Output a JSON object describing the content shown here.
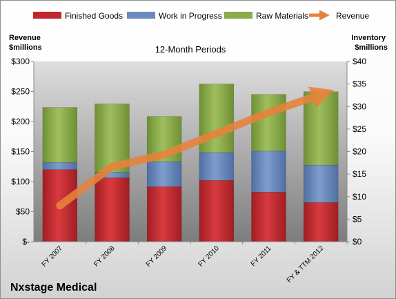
{
  "chart_data": {
    "type": "bar",
    "stacked": true,
    "title": "12-Month Periods",
    "company": "Nxstage Medical",
    "ylabel_left": "Revenue\n$millions",
    "ylabel_right": "Inventory\n$millions",
    "categories": [
      "FY 2007",
      "FY 2008",
      "FY 2009",
      "FY 2010",
      "FY 2011",
      "FY & TTM 2012"
    ],
    "left_axis": {
      "min": 0,
      "max": 300,
      "step": 50,
      "ticks": [
        "$-",
        "$50",
        "$100",
        "$150",
        "$200",
        "$250",
        "$300"
      ]
    },
    "right_axis": {
      "min": 0,
      "max": 40,
      "step": 5,
      "ticks": [
        "$0",
        "$5",
        "$10",
        "$15",
        "$20",
        "$25",
        "$30",
        "$35",
        "$40"
      ]
    },
    "series": [
      {
        "name": "Finished Goods",
        "axis": "right",
        "color": "#c0282d",
        "values": [
          16.0,
          14.2,
          12.2,
          13.6,
          11.0,
          8.7
        ]
      },
      {
        "name": "Work in Progress",
        "axis": "right",
        "color": "#6a89bd",
        "values": [
          1.6,
          1.2,
          5.6,
          6.2,
          9.1,
          8.3
        ]
      },
      {
        "name": "Raw Materials",
        "axis": "right",
        "color": "#8aab4b",
        "values": [
          12.2,
          15.2,
          10.0,
          15.2,
          12.6,
          16.3
        ]
      },
      {
        "name": "Revenue",
        "axis": "left",
        "type": "line",
        "color": "#e8823a",
        "values": [
          60,
          125,
          145,
          180,
          215,
          245
        ]
      }
    ],
    "grid": false,
    "legend": "top"
  }
}
